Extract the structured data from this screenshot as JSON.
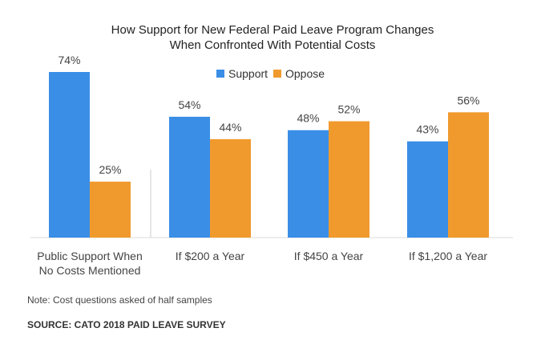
{
  "chart_data": {
    "type": "bar",
    "title_lines": [
      "How Support for New Federal Paid Leave Program Changes",
      "When Confronted With Potential Costs"
    ],
    "categories": [
      [
        "Public Support When",
        "No Costs Mentioned"
      ],
      [
        "If $200 a Year"
      ],
      [
        "If $450 a Year"
      ],
      [
        "If $1,200 a Year"
      ]
    ],
    "series": [
      {
        "name": "Support",
        "color": "#3a8ee6",
        "values": [
          74,
          54,
          48,
          43
        ],
        "labels": [
          "74%",
          "54%",
          "48%",
          "43%"
        ]
      },
      {
        "name": "Oppose",
        "color": "#f09a2e",
        "values": [
          25,
          44,
          52,
          56
        ],
        "labels": [
          "25%",
          "44%",
          "52%",
          "56%"
        ]
      }
    ],
    "ylim": [
      0,
      74
    ],
    "legend_position": "top-center",
    "grid": false,
    "value_unit": "%"
  },
  "note": "Note: Cost questions asked of half samples",
  "source": "SOURCE: CATO 2018 PAID LEAVE SURVEY"
}
